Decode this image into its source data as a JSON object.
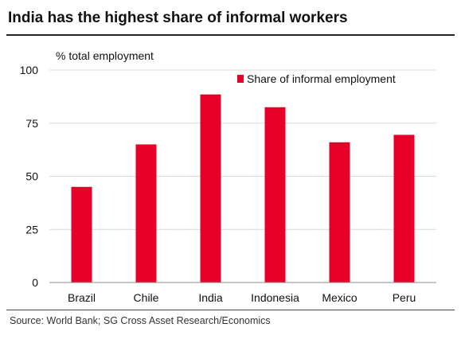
{
  "header": {
    "title": "India has the highest share of informal workers"
  },
  "footer": {
    "source": "Source: World Bank; SG Cross Asset Research/Economics"
  },
  "chart_data": {
    "type": "bar",
    "categories": [
      "Brazil",
      "Chile",
      "India",
      "Indonesia",
      "Mexico",
      "Peru"
    ],
    "series": [
      {
        "name": "Share of informal employment",
        "values": [
          45,
          65,
          88.5,
          82.5,
          66,
          69.5
        ],
        "color": "#e60028"
      }
    ],
    "ylabel": "% total employment",
    "ylim": [
      0,
      100
    ],
    "yticks": [
      0,
      25,
      50,
      75,
      100
    ],
    "grid": true,
    "legend": "top-right"
  }
}
